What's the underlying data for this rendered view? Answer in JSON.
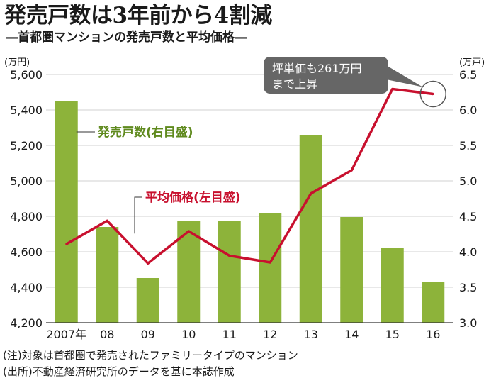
{
  "title": "発売戸数は3年前から4割減",
  "subtitle": "―首都圏マンションの発売戸数と平均価格―",
  "notes": [
    "(注)対象は首都圏で発売されたファミリータイプのマンション",
    "(出所)不動産経済研究所のデータを基に本誌作成"
  ],
  "colors": {
    "bars": "#8db33a",
    "line": "#c8102e",
    "grid": "#d2d2d2",
    "callout": "#666666"
  },
  "chart_data": {
    "type": "bar+line",
    "categories": [
      "2007年",
      "08",
      "09",
      "10",
      "11",
      "12",
      "13",
      "14",
      "15",
      "16"
    ],
    "left_axis": {
      "unit": "(万円)",
      "ylim": [
        4200,
        5600
      ],
      "ticks": [
        "4,200",
        "4,400",
        "4,600",
        "4,800",
        "5,000",
        "5,200",
        "5,400",
        "5,600"
      ]
    },
    "right_axis": {
      "unit": "(万戸)",
      "ylim": [
        3.0,
        6.5
      ],
      "ticks": [
        "3.0",
        "3.5",
        "4.0",
        "4.5",
        "5.0",
        "5.5",
        "6.0",
        "6.5"
      ]
    },
    "series": [
      {
        "name": "発売戸数(右目盛)",
        "type": "bar",
        "axis": "right",
        "values": [
          6.12,
          4.35,
          3.63,
          4.44,
          4.43,
          4.55,
          5.65,
          4.49,
          4.05,
          3.58
        ]
      },
      {
        "name": "平均価格(左目盛)",
        "type": "line",
        "axis": "left",
        "values": [
          4644,
          4775,
          4535,
          4716,
          4578,
          4540,
          4929,
          5060,
          5518,
          5490
        ]
      }
    ],
    "annotation": {
      "text": [
        "坪単価も261万円",
        "まで上昇"
      ],
      "target_category": "16"
    },
    "grid": true
  }
}
